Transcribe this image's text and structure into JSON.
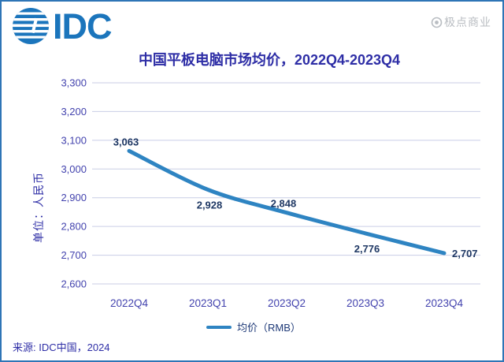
{
  "brand": {
    "logo_text": "IDC"
  },
  "watermark": {
    "icon": "circle-dot-icon",
    "text": "极点商业"
  },
  "title": "中国平板电脑市场均价，2022Q4-2023Q4",
  "y_axis_unit": "单位：人民币",
  "legend": {
    "label": "均价（RMB）"
  },
  "source": "来源: IDC中国，2024",
  "colors": {
    "frame_border": "#2e75b6",
    "logo_blue": "#1b75bc",
    "title_text": "#2e2ea6",
    "axis_text": "#4343ae",
    "gridline": "#c9cde6",
    "line": "#2e84c2",
    "data_label": "#1f3864",
    "watermark_gray": "#b9bdc2"
  },
  "chart_data": {
    "type": "line",
    "title": "中国平板电脑市场均价，2022Q4-2023Q4",
    "categories": [
      "2022Q4",
      "2023Q1",
      "2023Q2",
      "2023Q3",
      "2023Q4"
    ],
    "series": [
      {
        "name": "均价（RMB）",
        "values": [
          3063,
          2928,
          2848,
          2776,
          2707
        ]
      }
    ],
    "value_labels": [
      "3,063",
      "2,928",
      "2,848",
      "2,776",
      "2,707"
    ],
    "label_positions": [
      "above",
      "below",
      "above",
      "below",
      "right"
    ],
    "ylim": [
      2600,
      3300
    ],
    "y_tick_step": 100,
    "xlabel": "",
    "ylabel": "单位：人民币",
    "grid": true,
    "legend_position": "bottom"
  }
}
